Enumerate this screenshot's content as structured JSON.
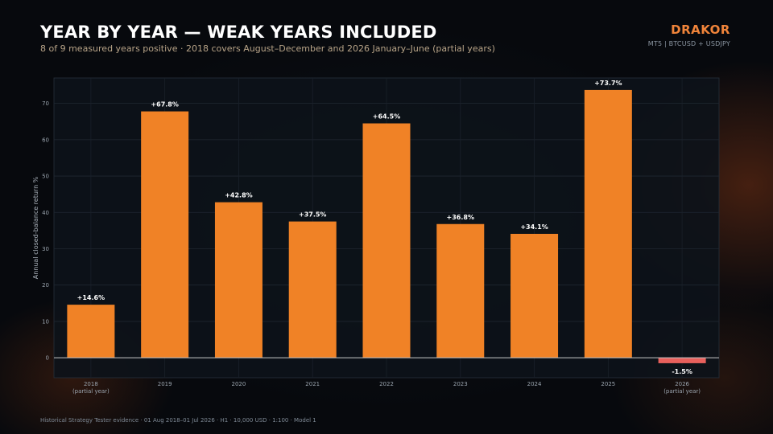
{
  "header": {
    "title": "YEAR BY YEAR — WEAK YEARS INCLUDED",
    "subtitle": "8 of 9 measured years positive · 2018 covers August–December and 2026 January–June (partial years)"
  },
  "brand": {
    "name": "DRAKOR",
    "tagline": "MT5  |  BTCUSD + USDJPY"
  },
  "footer": {
    "text": "Historical Strategy Tester evidence · 01 Aug 2018–01 Jul 2026 · H1 · 10,000 USD · 1:100 · Model 1"
  },
  "colors": {
    "positive": "#f08226",
    "negative": "#e8605c",
    "accent": "#f0843a"
  },
  "chart_data": {
    "type": "bar",
    "categories": [
      "2018",
      "2019",
      "2020",
      "2021",
      "2022",
      "2023",
      "2024",
      "2025",
      "2026"
    ],
    "category_notes": [
      "(partial year)",
      "",
      "",
      "",
      "",
      "",
      "",
      "",
      "(partial year)"
    ],
    "values": [
      14.6,
      67.8,
      42.8,
      37.5,
      64.5,
      36.8,
      34.1,
      73.7,
      -1.5
    ],
    "data_labels": [
      "+14.6%",
      "+67.8%",
      "+42.8%",
      "+37.5%",
      "+64.5%",
      "+36.8%",
      "+34.1%",
      "+73.7%",
      "-1.5%"
    ],
    "xlabel": "",
    "ylabel": "Annual closed-balance return %",
    "ylim": [
      -5.5,
      77
    ],
    "yticks": [
      0,
      10,
      20,
      30,
      40,
      50,
      60,
      70
    ],
    "grid": true,
    "legend": "none"
  }
}
